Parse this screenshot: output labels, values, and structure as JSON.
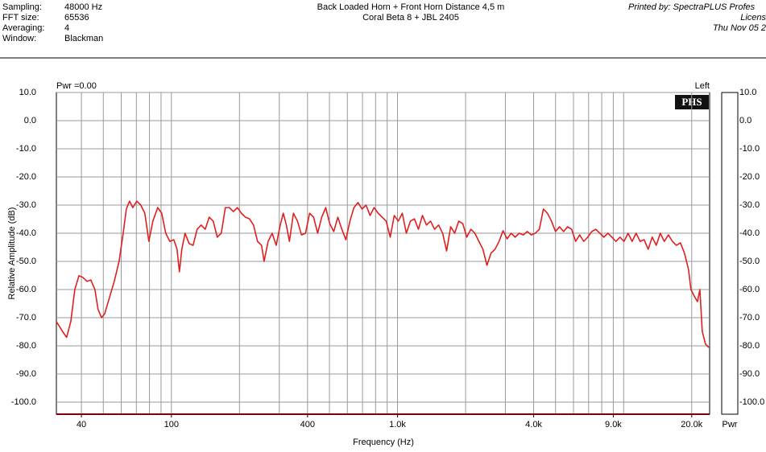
{
  "header": {
    "fields": [
      [
        "Sampling:",
        "48000 Hz"
      ],
      [
        "FFT size:",
        "65536"
      ],
      [
        "Averaging:",
        "4"
      ],
      [
        "Window:",
        "Blackman"
      ]
    ],
    "title": "Back Loaded Horn + Front Horn Distance 4,5 m",
    "subtitle": "Coral Beta 8 + JBL 2405",
    "printed": [
      "Printed by: SpectraPLUS Profes",
      "Licens",
      "Thu Nov 05 2"
    ]
  },
  "chart_data": {
    "type": "line",
    "xlabel": "Frequency (Hz)",
    "ylabel": "Relative Amplitude (dB)",
    "top_left": "Pwr =0.00",
    "top_right": "Left",
    "logo": "PHS",
    "meter_label": "Pwr",
    "xlog": true,
    "grid": true,
    "color": "#e02020",
    "xlim": [
      31,
      24000
    ],
    "ylim": [
      -104.3,
      10
    ],
    "xticks": [
      40,
      100,
      400,
      {
        "value": 1000,
        "label": "1.0k"
      },
      {
        "value": 4000,
        "label": "4.0k"
      },
      {
        "value": 9000,
        "label": "9.0k"
      },
      {
        "value": 20000,
        "label": "20.0k"
      }
    ],
    "xgrid": [
      40,
      50,
      60,
      70,
      80,
      90,
      100,
      200,
      300,
      400,
      500,
      600,
      700,
      800,
      900,
      1000,
      2000,
      3000,
      4000,
      5000,
      6000,
      7000,
      8000,
      9000,
      10000,
      20000
    ],
    "yticks": [
      {
        "value": 10,
        "label": "10.0"
      },
      {
        "value": 0,
        "label": "0.0"
      },
      {
        "value": -10,
        "label": "-10.0"
      },
      {
        "value": -20,
        "label": "-20.0"
      },
      {
        "value": -30,
        "label": "-30.0"
      },
      {
        "value": -40,
        "label": "-40.0"
      },
      {
        "value": -50,
        "label": "-50.0"
      },
      {
        "value": -60,
        "label": "-60.0"
      },
      {
        "value": -70,
        "label": "-70.0"
      },
      {
        "value": -80,
        "label": "-80.0"
      },
      {
        "value": -90,
        "label": "-90.0"
      },
      {
        "value": -100,
        "label": "-100.0"
      }
    ],
    "x": [
      31,
      33,
      34.4,
      35.9,
      37.4,
      39,
      40.6,
      42.3,
      44,
      45.9,
      47.4,
      49.1,
      50.7,
      53.2,
      55.9,
      58.7,
      61.2,
      63.2,
      65.3,
      67.5,
      70.3,
      73.2,
      76.3,
      79.5,
      82.8,
      87,
      90.6,
      94.4,
      98.4,
      102.5,
      105.9,
      108.5,
      111.2,
      114.9,
      119.8,
      124.7,
      130,
      135.4,
      141.1,
      147,
      153.1,
      159.5,
      166.2,
      173.2,
      180.4,
      188,
      195.9,
      204,
      212.6,
      221.5,
      230.8,
      240.4,
      250.5,
      257,
      267.8,
      279,
      290.7,
      302.9,
      312.5,
      322.4,
      332.6,
      346.5,
      361.1,
      376.2,
      392,
      408.4,
      425.5,
      443.4,
      462,
      481.3,
      501.5,
      522.5,
      544.4,
      567.2,
      591,
      615.8,
      641.6,
      668.5,
      696.5,
      725.7,
      756.1,
      787.8,
      820.8,
      855.2,
      891,
      928.4,
      967.3,
      1008,
      1050,
      1094,
      1140,
      1188,
      1237,
      1289,
      1343,
      1400,
      1458,
      1519,
      1583,
      1649,
      1718,
      1790,
      1865,
      1943,
      2025,
      2110,
      2198,
      2290,
      2386,
      2486,
      2590,
      2699,
      2812,
      2930,
      3052,
      3180,
      3314,
      3452,
      3597,
      3748,
      3905,
      4069,
      4239,
      4417,
      4602,
      4795,
      4996,
      5205,
      5423,
      5650,
      5887,
      6134,
      6391,
      6659,
      6938,
      7229,
      7532,
      7847,
      8176,
      8518,
      8875,
      9247,
      9635,
      10040,
      10460,
      10900,
      11350,
      11830,
      12320,
      12840,
      13380,
      13940,
      14520,
      15130,
      15770,
      16430,
      17120,
      17830,
      18580,
      19360,
      19840,
      20510,
      21200,
      21730,
      22270,
      23010,
      23800
    ],
    "values": [
      -71.4,
      -74.9,
      -77,
      -71.4,
      -60,
      -55.1,
      -55.7,
      -57.1,
      -56.6,
      -60,
      -67.1,
      -70,
      -68.6,
      -62.9,
      -57.1,
      -50,
      -40,
      -31.4,
      -28.6,
      -30.9,
      -28.6,
      -30,
      -32.9,
      -42.9,
      -35.7,
      -30.9,
      -32.9,
      -40,
      -42.9,
      -42.3,
      -45.7,
      -53.7,
      -45.7,
      -40,
      -43.7,
      -44.3,
      -38.6,
      -37.1,
      -38.6,
      -34.3,
      -35.7,
      -41.4,
      -40,
      -30.9,
      -30.9,
      -32.3,
      -30.9,
      -32.9,
      -34.3,
      -34.9,
      -37.1,
      -42.9,
      -44.3,
      -50,
      -42.9,
      -40,
      -44.3,
      -37.1,
      -32.9,
      -37.1,
      -42.9,
      -32.9,
      -35.7,
      -40.6,
      -40,
      -32.9,
      -34.3,
      -40,
      -34.3,
      -30.9,
      -36.6,
      -39.4,
      -34.3,
      -38.6,
      -42.3,
      -35.7,
      -30.9,
      -29.1,
      -31.4,
      -30,
      -33.7,
      -30.9,
      -32.9,
      -34.3,
      -35.7,
      -41.4,
      -33.7,
      -35.7,
      -32.9,
      -40,
      -35.7,
      -34.9,
      -38.6,
      -33.7,
      -37.1,
      -35.7,
      -38.6,
      -37.1,
      -40,
      -46.3,
      -37.7,
      -40,
      -35.7,
      -36.6,
      -41.4,
      -38.6,
      -40,
      -42.9,
      -45.7,
      -51.4,
      -47.1,
      -45.7,
      -42.9,
      -39.1,
      -42,
      -40,
      -41.4,
      -40,
      -40.6,
      -39.4,
      -40.6,
      -40,
      -38.6,
      -31.4,
      -32.9,
      -35.7,
      -39.4,
      -37.7,
      -39.4,
      -37.7,
      -38.6,
      -42.9,
      -40.6,
      -42.9,
      -41.4,
      -39.4,
      -38.6,
      -40,
      -41.4,
      -40,
      -41.4,
      -42.9,
      -41.4,
      -42.9,
      -40,
      -42.9,
      -40,
      -42.9,
      -42.3,
      -45.7,
      -41.4,
      -44.3,
      -40,
      -42.9,
      -40.6,
      -42.9,
      -44.3,
      -43.4,
      -47.1,
      -52.9,
      -60,
      -62.3,
      -64.3,
      -60,
      -74.9,
      -79.4,
      -80.6
    ]
  }
}
